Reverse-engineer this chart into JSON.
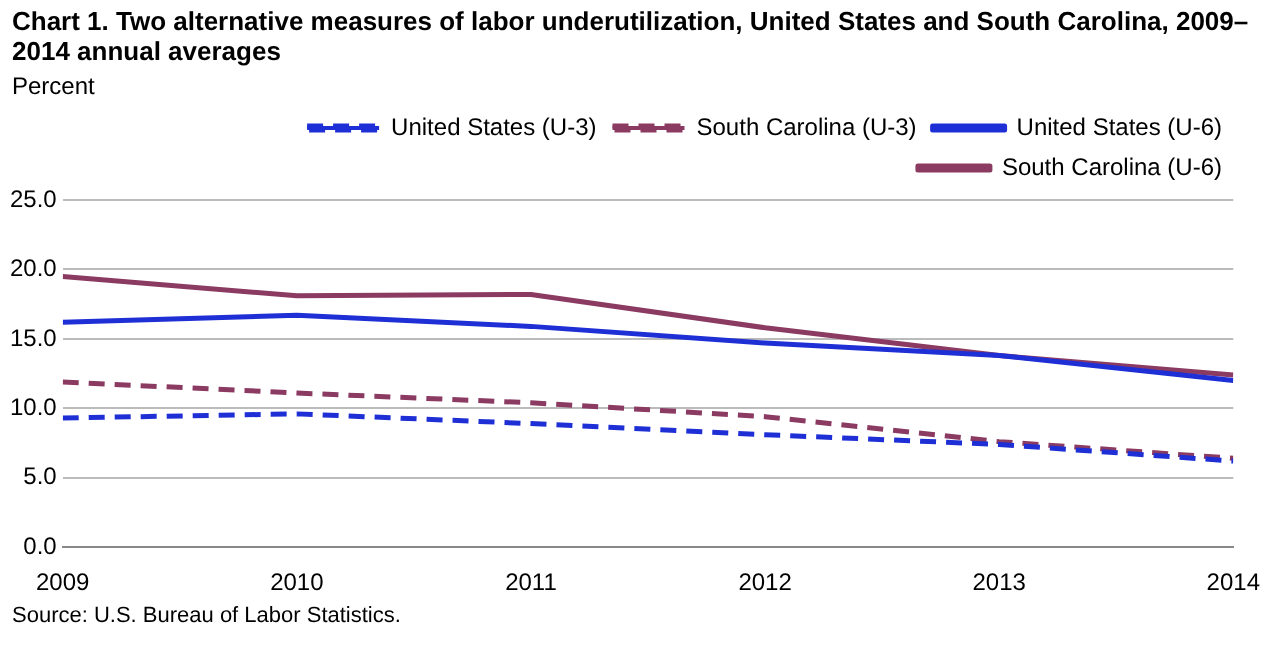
{
  "chart_data": {
    "type": "line",
    "title": "Chart 1. Two alternative measures of labor underutilization, United States and South Carolina, 2009–2014  annual averages",
    "ylabel": "Percent",
    "annotations": [
      "Source: U.S. Bureau of Labor Statistics."
    ],
    "x": [
      2009,
      2010,
      2011,
      2012,
      2013,
      2014
    ],
    "series": [
      {
        "name": "United States (U-3)",
        "color": "#1f2fd6",
        "line_style": "dashed",
        "values": [
          9.3,
          9.6,
          8.9,
          8.1,
          7.4,
          6.2
        ]
      },
      {
        "name": "South Carolina (U-3)",
        "color": "#8b3a62",
        "line_style": "dashed",
        "values": [
          11.9,
          11.1,
          10.4,
          9.4,
          7.6,
          6.4
        ]
      },
      {
        "name": "United States (U-6)",
        "color": "#1f2fd6",
        "line_style": "solid",
        "values": [
          16.2,
          16.7,
          15.9,
          14.7,
          13.8,
          12.0
        ]
      },
      {
        "name": "South Carolina (U-6)",
        "color": "#8b3a62",
        "line_style": "solid",
        "values": [
          19.5,
          18.1,
          18.2,
          15.8,
          13.8,
          12.4
        ]
      }
    ],
    "xlim": [
      2009,
      2014
    ],
    "xticks": [
      2009,
      2010,
      2011,
      2012,
      2013,
      2014
    ],
    "ylim": [
      0,
      25
    ],
    "yticks": [
      {
        "value": 0,
        "label": "0.0"
      },
      {
        "value": 5,
        "label": "5.0"
      },
      {
        "value": 10,
        "label": "10.0"
      },
      {
        "value": 15,
        "label": "15.0"
      },
      {
        "value": 20,
        "label": "20.0"
      },
      {
        "value": 25,
        "label": "25.0"
      }
    ],
    "grid": "y",
    "legend": "top right",
    "marker": "none"
  }
}
